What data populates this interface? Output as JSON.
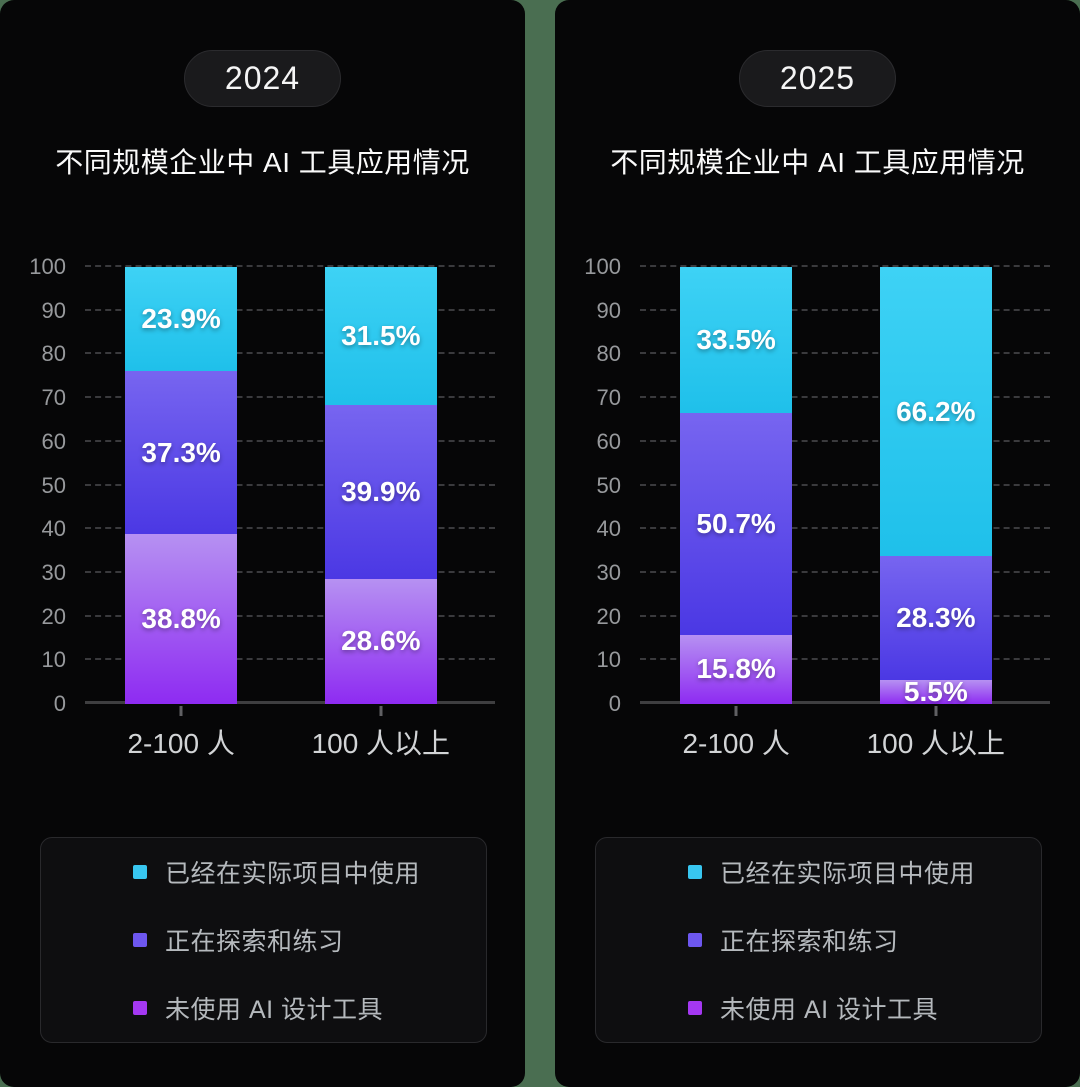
{
  "page": {
    "background_color": "#4a6e51",
    "panel_background": "#060607"
  },
  "chart_data": [
    {
      "type": "bar",
      "stacked": true,
      "stack_order": "first series on top",
      "badge": "2024",
      "title": "不同规模企业中 AI 工具应用情况",
      "categories": [
        "2-100 人",
        "100 人以上"
      ],
      "series": [
        {
          "name": "已经在实际项目中使用",
          "values": [
            23.9,
            31.5
          ],
          "swatch": "#38c6f0",
          "gradient": [
            "#3ed2f5",
            "#1fc0ea"
          ]
        },
        {
          "name": "正在探索和练习",
          "values": [
            37.3,
            39.9
          ],
          "swatch": "#6d57f0",
          "gradient": [
            "#7765f0",
            "#4b38e4"
          ]
        },
        {
          "name": "未使用 AI 设计工具",
          "values": [
            38.8,
            28.6
          ],
          "swatch": "#a438f2",
          "gradient": [
            "#b691f2",
            "#8e2bf2"
          ]
        }
      ],
      "ylim": [
        0,
        100
      ],
      "yticks": [
        0,
        10,
        20,
        30,
        40,
        50,
        60,
        70,
        80,
        90,
        100
      ],
      "grid": "horizontal-dashed",
      "legend_position": "bottom",
      "value_suffix": "%"
    },
    {
      "type": "bar",
      "stacked": true,
      "stack_order": "first series on top",
      "badge": "2025",
      "title": "不同规模企业中 AI 工具应用情况",
      "categories": [
        "2-100 人",
        "100 人以上"
      ],
      "series": [
        {
          "name": "已经在实际项目中使用",
          "values": [
            33.5,
            66.2
          ],
          "swatch": "#38c6f0",
          "gradient": [
            "#3ed2f5",
            "#1fc0ea"
          ]
        },
        {
          "name": "正在探索和练习",
          "values": [
            50.7,
            28.3
          ],
          "swatch": "#6d57f0",
          "gradient": [
            "#7765f0",
            "#4b38e4"
          ]
        },
        {
          "name": "未使用 AI 设计工具",
          "values": [
            15.8,
            5.5
          ],
          "swatch": "#a438f2",
          "gradient": [
            "#b691f2",
            "#8e2bf2"
          ]
        }
      ],
      "ylim": [
        0,
        100
      ],
      "yticks": [
        0,
        10,
        20,
        30,
        40,
        50,
        60,
        70,
        80,
        90,
        100
      ],
      "grid": "horizontal-dashed",
      "legend_position": "bottom",
      "value_suffix": "%"
    }
  ]
}
